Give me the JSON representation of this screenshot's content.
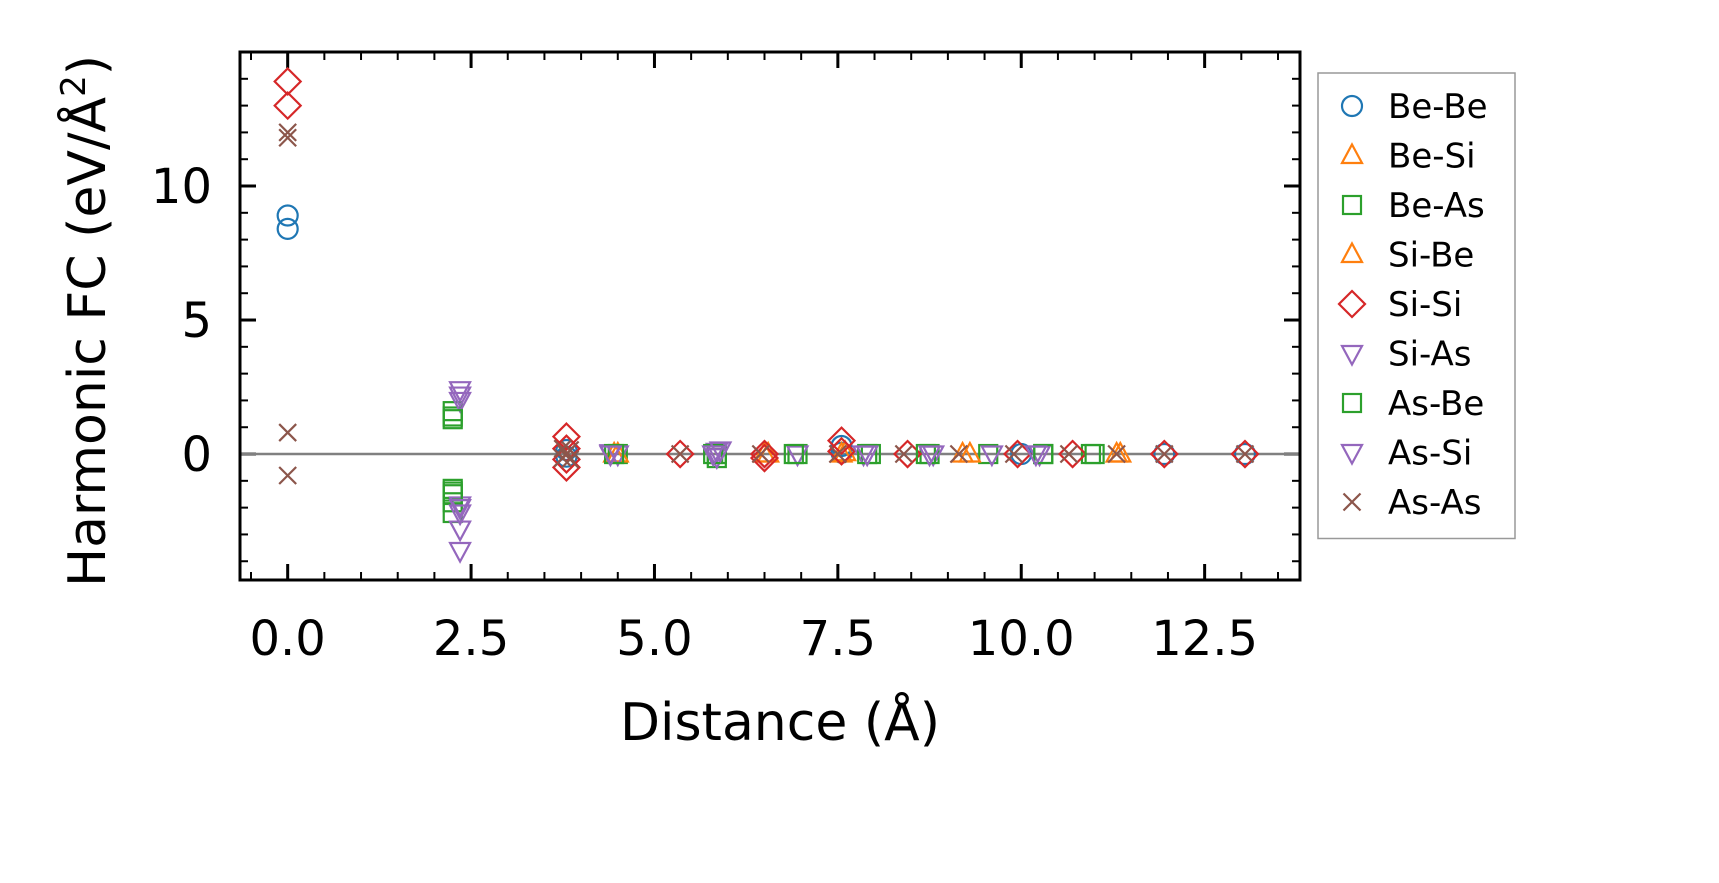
{
  "chart_data": {
    "type": "scatter",
    "title": "",
    "xlabel": "Distance (Å)",
    "ylabel_main": "Harmonic FC (eV/Å",
    "ylabel_sup": "2",
    "ylabel_close": ")",
    "ylabel": "Harmonic FC (eV/Å²)",
    "xlim": [
      -0.65,
      13.8
    ],
    "ylim": [
      -4.7,
      15.0
    ],
    "xticks": [
      0.0,
      2.5,
      5.0,
      7.5,
      10.0,
      12.5
    ],
    "xtick_labels": [
      "0.0",
      "2.5",
      "5.0",
      "7.5",
      "10.0",
      "12.5"
    ],
    "yticks": [
      0,
      5,
      10
    ],
    "ytick_labels": [
      "0",
      "5",
      "10"
    ],
    "zero_line": true,
    "legend_position": "outside-right",
    "series": [
      {
        "name": "Be-Be",
        "marker": "circle",
        "color": "#1f77b4",
        "points": [
          [
            0,
            8.9
          ],
          [
            0,
            8.4
          ],
          [
            3.8,
            0.15
          ],
          [
            3.8,
            -0.1
          ],
          [
            7.55,
            0.3
          ],
          [
            7.55,
            0.05
          ],
          [
            10.0,
            0.0
          ],
          [
            11.95,
            0.0
          ],
          [
            13.05,
            0.0
          ]
        ]
      },
      {
        "name": "Be-Si",
        "marker": "triangle-up",
        "color": "#ff7f0e",
        "points": [
          [
            4.45,
            0.0
          ],
          [
            6.5,
            0.0
          ],
          [
            7.55,
            0.0
          ],
          [
            9.2,
            0.0
          ],
          [
            11.3,
            0.0
          ]
        ]
      },
      {
        "name": "Be-As",
        "marker": "square",
        "color": "#2ca02c",
        "points": [
          [
            2.25,
            1.4
          ],
          [
            2.25,
            1.6
          ],
          [
            2.25,
            -1.3
          ],
          [
            2.25,
            -1.5
          ],
          [
            2.25,
            -1.8
          ],
          [
            2.25,
            -2.2
          ],
          [
            4.5,
            0.0
          ],
          [
            5.85,
            0.0
          ],
          [
            5.85,
            -0.15
          ],
          [
            6.95,
            0.0
          ],
          [
            7.95,
            0.0
          ],
          [
            8.75,
            0.0
          ],
          [
            9.55,
            0.0
          ],
          [
            10.3,
            0.0
          ],
          [
            10.95,
            0.0
          ]
        ]
      },
      {
        "name": "Si-Be",
        "marker": "triangle-up",
        "color": "#ff7f0e",
        "points": [
          [
            4.5,
            0.0
          ],
          [
            6.55,
            0.0
          ],
          [
            7.6,
            0.05
          ],
          [
            9.3,
            0.0
          ],
          [
            11.35,
            0.0
          ]
        ]
      },
      {
        "name": "Si-Si",
        "marker": "diamond",
        "color": "#d62728",
        "points": [
          [
            0,
            13.9
          ],
          [
            0,
            13.0
          ],
          [
            3.8,
            0.65
          ],
          [
            3.8,
            0.2
          ],
          [
            3.8,
            -0.2
          ],
          [
            3.8,
            -0.5
          ],
          [
            5.35,
            0.0
          ],
          [
            6.5,
            0.0
          ],
          [
            6.5,
            -0.15
          ],
          [
            7.55,
            0.5
          ],
          [
            7.55,
            0.1
          ],
          [
            8.45,
            0.0
          ],
          [
            9.95,
            0.0
          ],
          [
            10.7,
            0.0
          ],
          [
            11.95,
            0.0
          ],
          [
            13.05,
            0.0
          ]
        ]
      },
      {
        "name": "Si-As",
        "marker": "triangle-down",
        "color": "#9467bd",
        "points": [
          [
            2.35,
            2.4
          ],
          [
            2.35,
            2.0
          ],
          [
            2.35,
            -1.9
          ],
          [
            2.35,
            -2.2
          ],
          [
            2.35,
            -2.8
          ],
          [
            2.35,
            -3.6
          ],
          [
            4.4,
            0.05
          ],
          [
            4.5,
            0.0
          ],
          [
            5.85,
            0.1
          ],
          [
            5.85,
            -0.1
          ],
          [
            6.95,
            0.0
          ],
          [
            7.85,
            0.0
          ],
          [
            8.8,
            0.0
          ],
          [
            9.6,
            0.0
          ],
          [
            10.25,
            0.0
          ]
        ]
      },
      {
        "name": "As-Be",
        "marker": "square",
        "color": "#2ca02c",
        "points": [
          [
            2.25,
            1.3
          ],
          [
            2.25,
            -1.4
          ],
          [
            4.45,
            0.0
          ],
          [
            5.8,
            0.0
          ],
          [
            6.9,
            0.0
          ],
          [
            7.9,
            0.0
          ],
          [
            8.7,
            0.0
          ],
          [
            10.3,
            0.0
          ],
          [
            11.0,
            0.0
          ]
        ]
      },
      {
        "name": "As-Si",
        "marker": "triangle-down",
        "color": "#9467bd",
        "points": [
          [
            2.35,
            2.2
          ],
          [
            2.35,
            -2.0
          ],
          [
            4.4,
            0.0
          ],
          [
            5.8,
            0.0
          ],
          [
            5.9,
            0.15
          ],
          [
            7.9,
            0.0
          ],
          [
            8.75,
            0.0
          ],
          [
            10.2,
            0.0
          ]
        ]
      },
      {
        "name": "As-As",
        "marker": "x",
        "color": "#8c564b",
        "points": [
          [
            0,
            12.0
          ],
          [
            0,
            11.8
          ],
          [
            0,
            0.8
          ],
          [
            0,
            -0.8
          ],
          [
            3.75,
            0.2
          ],
          [
            3.8,
            0.0
          ],
          [
            3.85,
            -0.2
          ],
          [
            3.75,
            -0.15
          ],
          [
            3.85,
            0.15
          ],
          [
            5.35,
            0.0
          ],
          [
            6.45,
            0.0
          ],
          [
            7.5,
            0.0
          ],
          [
            8.4,
            0.0
          ],
          [
            9.15,
            0.0
          ],
          [
            9.9,
            0.0
          ],
          [
            10.65,
            0.0
          ],
          [
            11.3,
            0.0
          ],
          [
            11.95,
            0.0
          ],
          [
            13.05,
            0.0
          ]
        ]
      }
    ]
  }
}
